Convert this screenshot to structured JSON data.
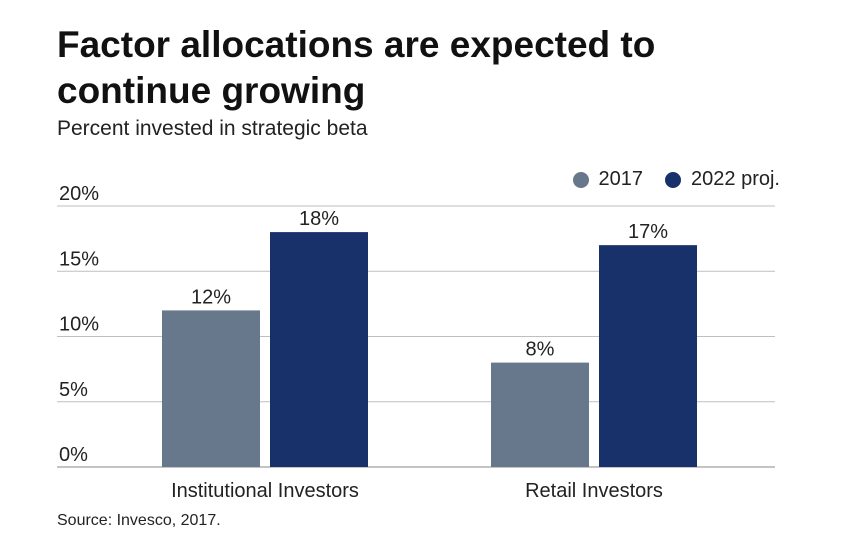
{
  "chart_data": {
    "type": "bar",
    "title": "Factor allocations are expected to continue growing",
    "subtitle": "Percent invested in strategic beta",
    "source": "Source: Invesco, 2017.",
    "categories": [
      "Institutional Investors",
      "Retail Investors"
    ],
    "series": [
      {
        "name": "2017",
        "values": [
          12,
          8
        ],
        "labels": [
          "12%",
          "8%"
        ],
        "color": "#67778c"
      },
      {
        "name": "2022 proj.",
        "values": [
          18,
          17
        ],
        "labels": [
          "18%",
          "17%"
        ],
        "color": "#19316b"
      }
    ],
    "ylim": [
      0,
      20
    ],
    "yticks": [
      0,
      5,
      10,
      15,
      20
    ],
    "ytick_labels": [
      "0%",
      "5%",
      "10%",
      "15%",
      "20%"
    ],
    "xlabel": "",
    "ylabel": "",
    "grid": true,
    "legend_position": "top-right",
    "gridline_color": "#bfbfbf"
  }
}
